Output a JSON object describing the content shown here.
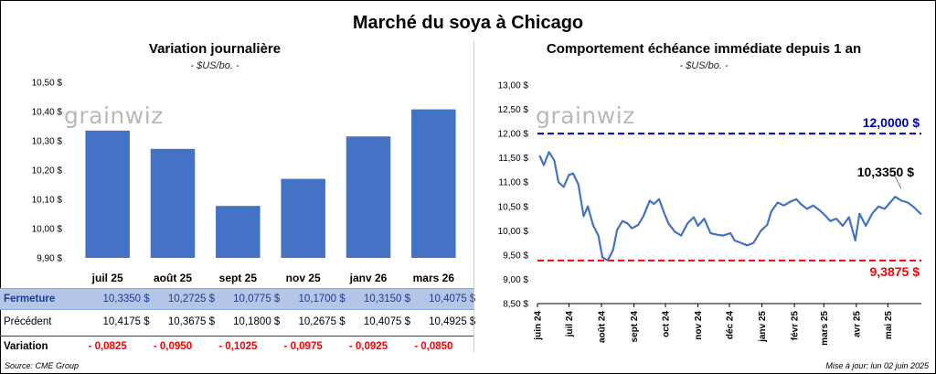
{
  "title": "Marché du soya à Chicago",
  "left": {
    "title": "Variation journalière",
    "unit": "- $US/bo. -",
    "watermark": "grainwiz",
    "bar_color": "#4472c4",
    "table": {
      "rows": [
        {
          "label": "Fermeture",
          "values": [
            "10,3350  $",
            "10,2725  $",
            "10,0775  $",
            "10,1700  $",
            "10,3150  $",
            "10,4075  $"
          ]
        },
        {
          "label": "Précédent",
          "values": [
            "10,4175  $",
            "10,3675  $",
            "10,1800  $",
            "10,2675  $",
            "10,4075  $",
            "10,4925  $"
          ]
        },
        {
          "label": "Variation",
          "values": [
            "- 0,0825",
            "- 0,0950",
            "- 0,1025",
            "- 0,0975",
            "- 0,0925",
            "- 0,0850"
          ]
        }
      ]
    }
  },
  "right": {
    "title": "Comportement  échéance immédiate depuis 1 an",
    "unit": "- $US/bo. -",
    "watermark": "grainwiz",
    "line_color": "#4472c4",
    "upper_color": "#0000aa",
    "lower_color": "#ff0000"
  },
  "footer": {
    "source": "Source: CME Group",
    "updated": "Mise à jour: lun 02 juin 2025"
  },
  "chart_data": [
    {
      "type": "bar",
      "title": "Variation journalière",
      "ylabel": "- $US/bo. -",
      "categories": [
        "juil 25",
        "août 25",
        "sept 25",
        "nov 25",
        "janv 26",
        "mars 26"
      ],
      "values": [
        10.335,
        10.2725,
        10.0775,
        10.17,
        10.315,
        10.4075
      ],
      "ylim": [
        9.9,
        10.5
      ],
      "yticks": [
        9.9,
        10.0,
        10.1,
        10.2,
        10.3,
        10.4,
        10.5
      ],
      "ytick_labels": [
        "9,90 $",
        "10,00 $",
        "10,10 $",
        "10,20 $",
        "10,30 $",
        "10,40 $",
        "10,50 $"
      ],
      "grid": false,
      "legend": "none"
    },
    {
      "type": "line",
      "title": "Comportement  échéance immédiate depuis 1 an",
      "ylabel": "- $US/bo. -",
      "ylim": [
        8.5,
        13.0
      ],
      "yticks": [
        8.5,
        9.0,
        9.5,
        10.0,
        10.5,
        11.0,
        11.5,
        12.0,
        12.5,
        13.0
      ],
      "ytick_labels": [
        "8,50 $",
        "9,00 $",
        "9,50 $",
        "10,00 $",
        "10,50 $",
        "11,00 $",
        "11,50 $",
        "12,00 $",
        "12,50 $",
        "13,00 $"
      ],
      "x_range": [
        "2024-06-01",
        "2025-06-02"
      ],
      "xtick_labels": [
        "juin 24",
        "juil 24",
        "août 24",
        "sept 24",
        "oct 24",
        "nov 24",
        "déc 24",
        "janv 25",
        "févr 25",
        "mars 25",
        "avr 25",
        "mai 25"
      ],
      "xtick_dates": [
        "2024-06-01",
        "2024-07-01",
        "2024-08-01",
        "2024-09-01",
        "2024-10-01",
        "2024-11-01",
        "2024-12-01",
        "2025-01-01",
        "2025-02-01",
        "2025-03-01",
        "2025-04-01",
        "2025-05-01"
      ],
      "series": [
        {
          "x": [
            "2024-06-03",
            "2024-06-07",
            "2024-06-12",
            "2024-06-17",
            "2024-06-21",
            "2024-06-26",
            "2024-07-01",
            "2024-07-05",
            "2024-07-10",
            "2024-07-15",
            "2024-07-19",
            "2024-07-24",
            "2024-07-29",
            "2024-08-02",
            "2024-08-07",
            "2024-08-12",
            "2024-08-16",
            "2024-08-21",
            "2024-08-26",
            "2024-08-30",
            "2024-09-05",
            "2024-09-10",
            "2024-09-16",
            "2024-09-20",
            "2024-09-25",
            "2024-09-30",
            "2024-10-04",
            "2024-10-10",
            "2024-10-16",
            "2024-10-22",
            "2024-10-28",
            "2024-11-01",
            "2024-11-07",
            "2024-11-13",
            "2024-11-19",
            "2024-11-25",
            "2024-12-02",
            "2024-12-06",
            "2024-12-12",
            "2024-12-18",
            "2024-12-24",
            "2024-12-31",
            "2025-01-06",
            "2025-01-10",
            "2025-01-16",
            "2025-01-22",
            "2025-01-28",
            "2025-02-03",
            "2025-02-07",
            "2025-02-13",
            "2025-02-19",
            "2025-02-25",
            "2025-03-03",
            "2025-03-07",
            "2025-03-13",
            "2025-03-19",
            "2025-03-25",
            "2025-03-31",
            "2025-04-04",
            "2025-04-10",
            "2025-04-16",
            "2025-04-22",
            "2025-04-28",
            "2025-05-02",
            "2025-05-08",
            "2025-05-14",
            "2025-05-20",
            "2025-05-26",
            "2025-06-02"
          ],
          "y": [
            11.55,
            11.35,
            11.62,
            11.45,
            11.0,
            10.9,
            11.15,
            11.18,
            10.95,
            10.3,
            10.5,
            10.12,
            9.9,
            9.45,
            9.39,
            9.6,
            10.02,
            10.2,
            10.15,
            10.05,
            10.12,
            10.3,
            10.62,
            10.55,
            10.65,
            10.35,
            10.15,
            9.98,
            9.9,
            10.15,
            10.28,
            10.1,
            10.25,
            9.95,
            9.92,
            9.9,
            9.95,
            9.8,
            9.75,
            9.7,
            9.75,
            10.0,
            10.12,
            10.4,
            10.58,
            10.52,
            10.6,
            10.65,
            10.55,
            10.45,
            10.52,
            10.42,
            10.3,
            10.2,
            10.25,
            10.1,
            10.28,
            9.8,
            10.35,
            10.1,
            10.35,
            10.5,
            10.45,
            10.55,
            10.7,
            10.62,
            10.58,
            10.48,
            10.335
          ]
        }
      ],
      "reference_lines": [
        {
          "value": 12.0,
          "label": "12,0000 $",
          "color": "#0000aa",
          "style": "dashed"
        },
        {
          "value": 9.3875,
          "label": "9,3875 $",
          "color": "#ff0000",
          "style": "dashed"
        }
      ],
      "annotations": [
        {
          "text": "10,3350 $",
          "x": "2025-06-02",
          "y": 10.335
        }
      ],
      "grid": false,
      "legend": "none"
    }
  ]
}
